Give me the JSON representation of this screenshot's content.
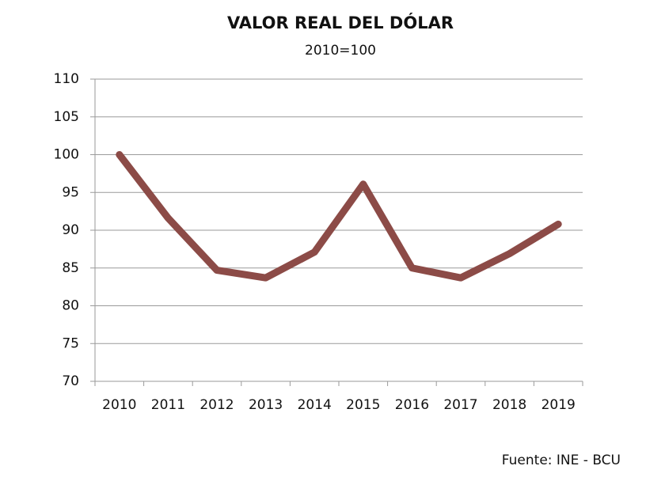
{
  "chart_data": {
    "type": "line",
    "title": "VALOR REAL DEL DÓLAR",
    "subtitle": "2010=100",
    "categories": [
      "2010",
      "2011",
      "2012",
      "2013",
      "2014",
      "2015",
      "2016",
      "2017",
      "2018",
      "2019"
    ],
    "series": [
      {
        "name": "Valor real del dólar",
        "color": "#8c4b47",
        "values": [
          100,
          91.6,
          84.7,
          83.7,
          87.1,
          96.1,
          85,
          83.7,
          86.9,
          90.8
        ]
      }
    ],
    "ylim": [
      70,
      110
    ],
    "yticks": [
      70,
      75,
      80,
      85,
      90,
      95,
      100,
      105,
      110
    ],
    "grid": true,
    "source": "Fuente: INE - BCU"
  }
}
